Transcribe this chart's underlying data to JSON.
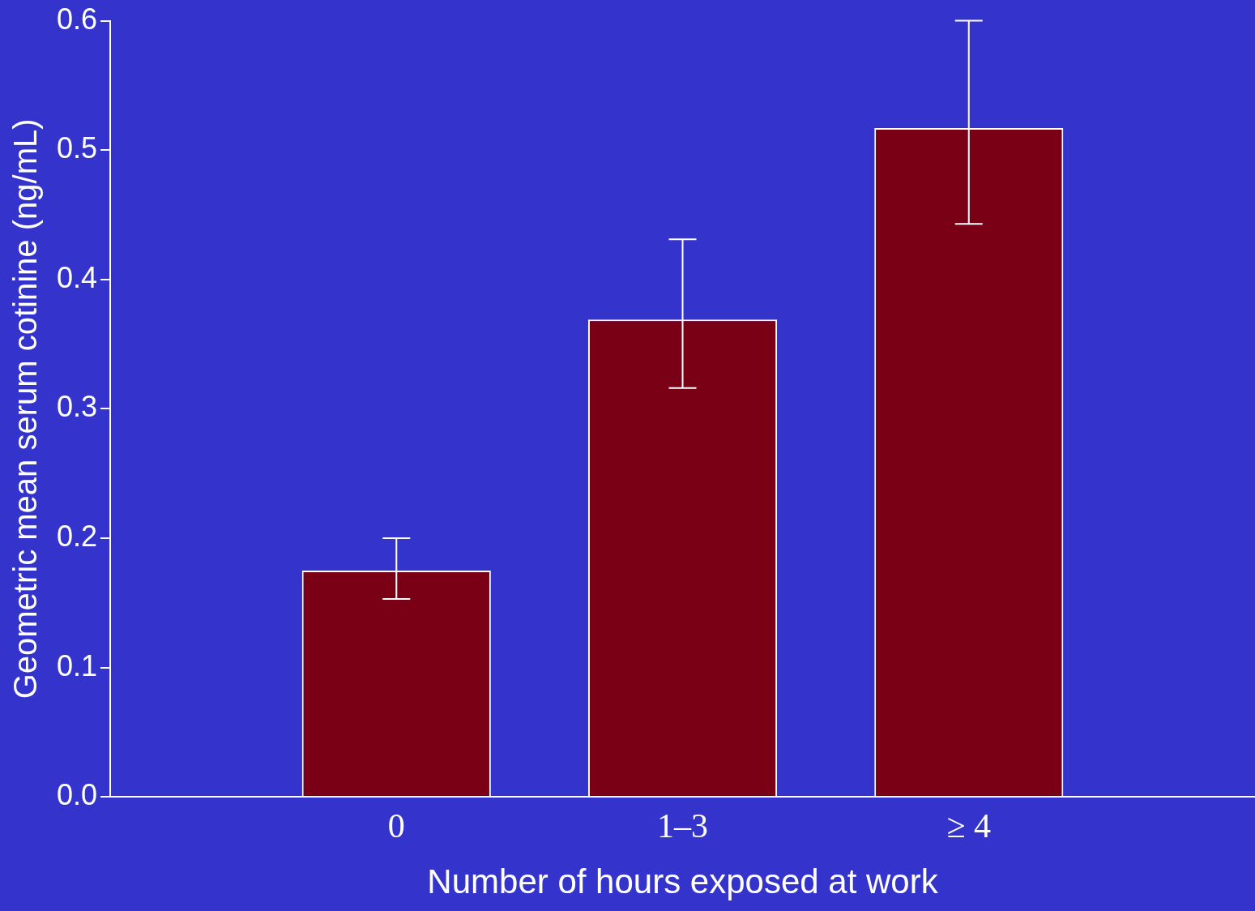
{
  "chart_data": {
    "type": "bar",
    "xlabel": "Number of hours exposed at work",
    "ylabel": "Geometric mean serum cotinine (ng/mL)",
    "categories": [
      "0",
      "1–3",
      "≥ 4"
    ],
    "values": [
      0.175,
      0.369,
      0.517
    ],
    "errors": [
      [
        0.153,
        0.2
      ],
      [
        0.316,
        0.431
      ],
      [
        0.443,
        0.6
      ]
    ],
    "color": "#7a0015",
    "ylim": [
      0,
      0.6
    ],
    "yticks": [
      {
        "value": 0,
        "label": "0.0"
      },
      0.1,
      0.2,
      0.3,
      0.4,
      0.5,
      0.6
    ],
    "grid": false,
    "legend": false
  }
}
